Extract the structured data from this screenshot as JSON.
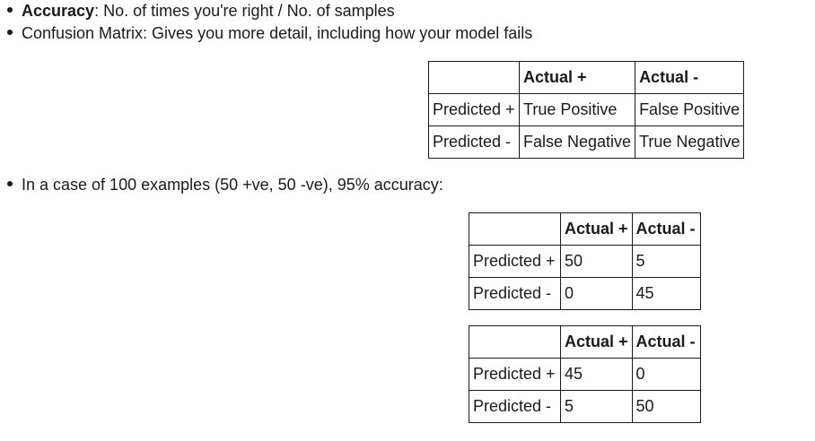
{
  "bullets": {
    "accuracy_term": "Accuracy",
    "accuracy_rest": ": No. of times you're right / No. of samples",
    "confusion": "Confusion Matrix: Gives you more detail, including how your model fails",
    "example": "In a case of 100 examples (50 +ve, 50 -ve), 95% accuracy:"
  },
  "table_general": {
    "headers": [
      "",
      "Actual +",
      "Actual -"
    ],
    "rows": [
      [
        "Predicted +",
        "True Positive",
        "False Positive"
      ],
      [
        "Predicted -",
        "False Negative",
        "True Negative"
      ]
    ]
  },
  "table_example_1": {
    "headers": [
      "",
      "Actual +",
      "Actual -"
    ],
    "rows": [
      [
        "Predicted +",
        "50",
        "5"
      ],
      [
        "Predicted -",
        "0",
        "45"
      ]
    ]
  },
  "table_example_2": {
    "headers": [
      "",
      "Actual +",
      "Actual -"
    ],
    "rows": [
      [
        "Predicted +",
        "45",
        "0"
      ],
      [
        "Predicted -",
        "5",
        "50"
      ]
    ]
  }
}
